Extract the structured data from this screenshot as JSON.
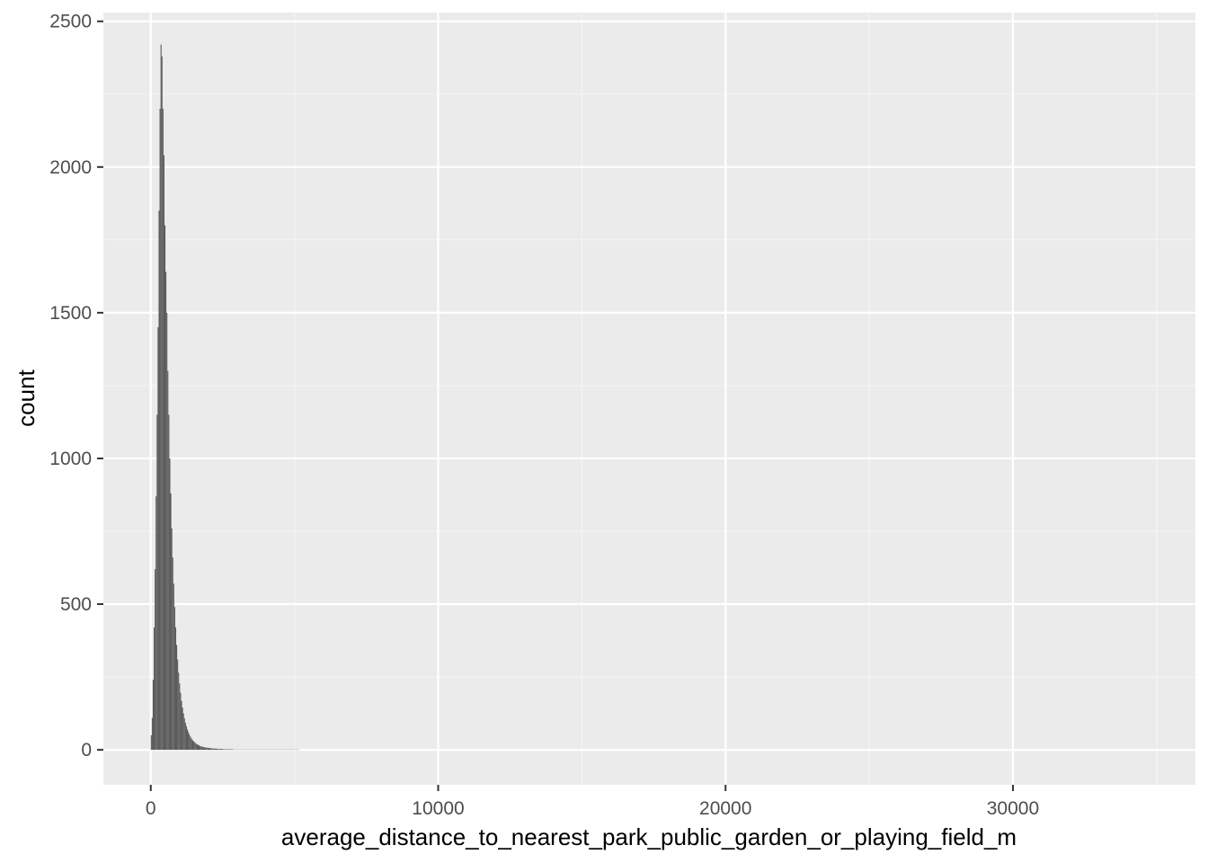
{
  "chart_data": {
    "type": "bar",
    "subtype": "histogram",
    "title": "",
    "xlabel": "average_distance_to_nearest_park_public_garden_or_playing_field_m",
    "ylabel": "count",
    "xlim": [
      -1650,
      36350
    ],
    "ylim": [
      -120,
      2530
    ],
    "x_ticks": [
      0,
      10000,
      20000,
      30000
    ],
    "x_tick_labels": [
      "0",
      "10000",
      "20000",
      "30000"
    ],
    "y_ticks": [
      0,
      500,
      1000,
      1500,
      2000,
      2500
    ],
    "y_tick_labels": [
      "0",
      "500",
      "1000",
      "1500",
      "2000",
      "2500"
    ],
    "grid": true,
    "legend": "none",
    "bin_width": 34,
    "bins": [
      [
        0,
        50
      ],
      [
        34,
        110
      ],
      [
        68,
        240
      ],
      [
        102,
        420
      ],
      [
        136,
        620
      ],
      [
        170,
        870
      ],
      [
        204,
        1150
      ],
      [
        238,
        1450
      ],
      [
        272,
        1850
      ],
      [
        306,
        2200
      ],
      [
        340,
        2420
      ],
      [
        374,
        2380
      ],
      [
        408,
        2200
      ],
      [
        442,
        2040
      ],
      [
        476,
        1800
      ],
      [
        510,
        1640
      ],
      [
        544,
        1500
      ],
      [
        578,
        1300
      ],
      [
        612,
        1150
      ],
      [
        646,
        1000
      ],
      [
        680,
        880
      ],
      [
        714,
        760
      ],
      [
        748,
        660
      ],
      [
        782,
        570
      ],
      [
        816,
        490
      ],
      [
        850,
        420
      ],
      [
        884,
        360
      ],
      [
        918,
        310
      ],
      [
        952,
        265
      ],
      [
        986,
        228
      ],
      [
        1020,
        196
      ],
      [
        1054,
        168
      ],
      [
        1088,
        145
      ],
      [
        1122,
        125
      ],
      [
        1156,
        108
      ],
      [
        1190,
        93
      ],
      [
        1224,
        81
      ],
      [
        1258,
        70
      ],
      [
        1292,
        61
      ],
      [
        1326,
        53
      ],
      [
        1360,
        46
      ],
      [
        1394,
        40
      ],
      [
        1428,
        35
      ],
      [
        1462,
        31
      ],
      [
        1496,
        27
      ],
      [
        1530,
        24
      ],
      [
        1564,
        21
      ],
      [
        1598,
        19
      ],
      [
        1632,
        17
      ],
      [
        1666,
        15
      ],
      [
        1700,
        13
      ],
      [
        1734,
        12
      ],
      [
        1768,
        11
      ],
      [
        1802,
        10
      ],
      [
        1836,
        9
      ],
      [
        1870,
        8
      ],
      [
        1904,
        8
      ],
      [
        1938,
        7
      ],
      [
        1972,
        7
      ],
      [
        2006,
        6
      ],
      [
        2040,
        6
      ],
      [
        2074,
        5
      ],
      [
        2108,
        5
      ],
      [
        2142,
        5
      ],
      [
        2176,
        4
      ],
      [
        2210,
        4
      ],
      [
        2244,
        4
      ],
      [
        2278,
        4
      ],
      [
        2312,
        3
      ],
      [
        2346,
        3
      ],
      [
        2380,
        3
      ],
      [
        2414,
        3
      ],
      [
        2448,
        3
      ],
      [
        2482,
        3
      ],
      [
        2516,
        2
      ],
      [
        2550,
        2
      ],
      [
        2584,
        2
      ],
      [
        2618,
        2
      ],
      [
        2652,
        2
      ],
      [
        2686,
        2
      ],
      [
        2720,
        2
      ],
      [
        2754,
        2
      ],
      [
        2788,
        2
      ],
      [
        2822,
        2
      ],
      [
        2856,
        1
      ],
      [
        2890,
        1
      ],
      [
        2924,
        1
      ],
      [
        2958,
        1
      ],
      [
        2992,
        1
      ],
      [
        3026,
        1
      ],
      [
        3060,
        1
      ],
      [
        3094,
        1
      ],
      [
        3128,
        1
      ],
      [
        3162,
        1
      ],
      [
        3196,
        1
      ],
      [
        3230,
        1
      ],
      [
        3264,
        1
      ],
      [
        3298,
        1
      ],
      [
        3332,
        1
      ],
      [
        3366,
        1
      ],
      [
        3400,
        1
      ],
      [
        3434,
        1
      ],
      [
        3468,
        1
      ],
      [
        3502,
        1
      ],
      [
        3536,
        1
      ],
      [
        3570,
        1
      ],
      [
        3604,
        1
      ],
      [
        3638,
        1
      ],
      [
        3672,
        1
      ],
      [
        3706,
        1
      ],
      [
        3740,
        1
      ],
      [
        3774,
        1
      ],
      [
        3808,
        1
      ],
      [
        3842,
        1
      ],
      [
        3876,
        1
      ],
      [
        3910,
        1
      ],
      [
        3944,
        1
      ],
      [
        3978,
        1
      ],
      [
        4012,
        1
      ],
      [
        4046,
        1
      ],
      [
        4080,
        1
      ],
      [
        4114,
        1
      ],
      [
        4148,
        1
      ],
      [
        4182,
        1
      ],
      [
        4216,
        1
      ],
      [
        4250,
        1
      ],
      [
        4284,
        1
      ],
      [
        4318,
        1
      ],
      [
        4352,
        1
      ],
      [
        4386,
        1
      ],
      [
        4420,
        1
      ],
      [
        4454,
        1
      ],
      [
        4488,
        1
      ],
      [
        4522,
        1
      ],
      [
        4556,
        1
      ],
      [
        4590,
        1
      ],
      [
        4624,
        1
      ],
      [
        4658,
        1
      ],
      [
        4692,
        1
      ],
      [
        4726,
        1
      ],
      [
        4760,
        1
      ],
      [
        4794,
        1
      ],
      [
        4828,
        1
      ],
      [
        4862,
        1
      ],
      [
        4896,
        1
      ],
      [
        4930,
        1
      ],
      [
        4964,
        1
      ],
      [
        4998,
        1
      ],
      [
        5032,
        1
      ],
      [
        5066,
        1
      ],
      [
        5100,
        1
      ],
      [
        5134,
        1
      ]
    ],
    "colors": {
      "panel_background": "#ebebeb",
      "grid_major": "#ffffff",
      "grid_minor": "#f5f5f5",
      "bar_fill": "#595959",
      "tick_label": "#4d4d4d",
      "tick_mark": "#333333",
      "axis_title": "#000000"
    }
  }
}
